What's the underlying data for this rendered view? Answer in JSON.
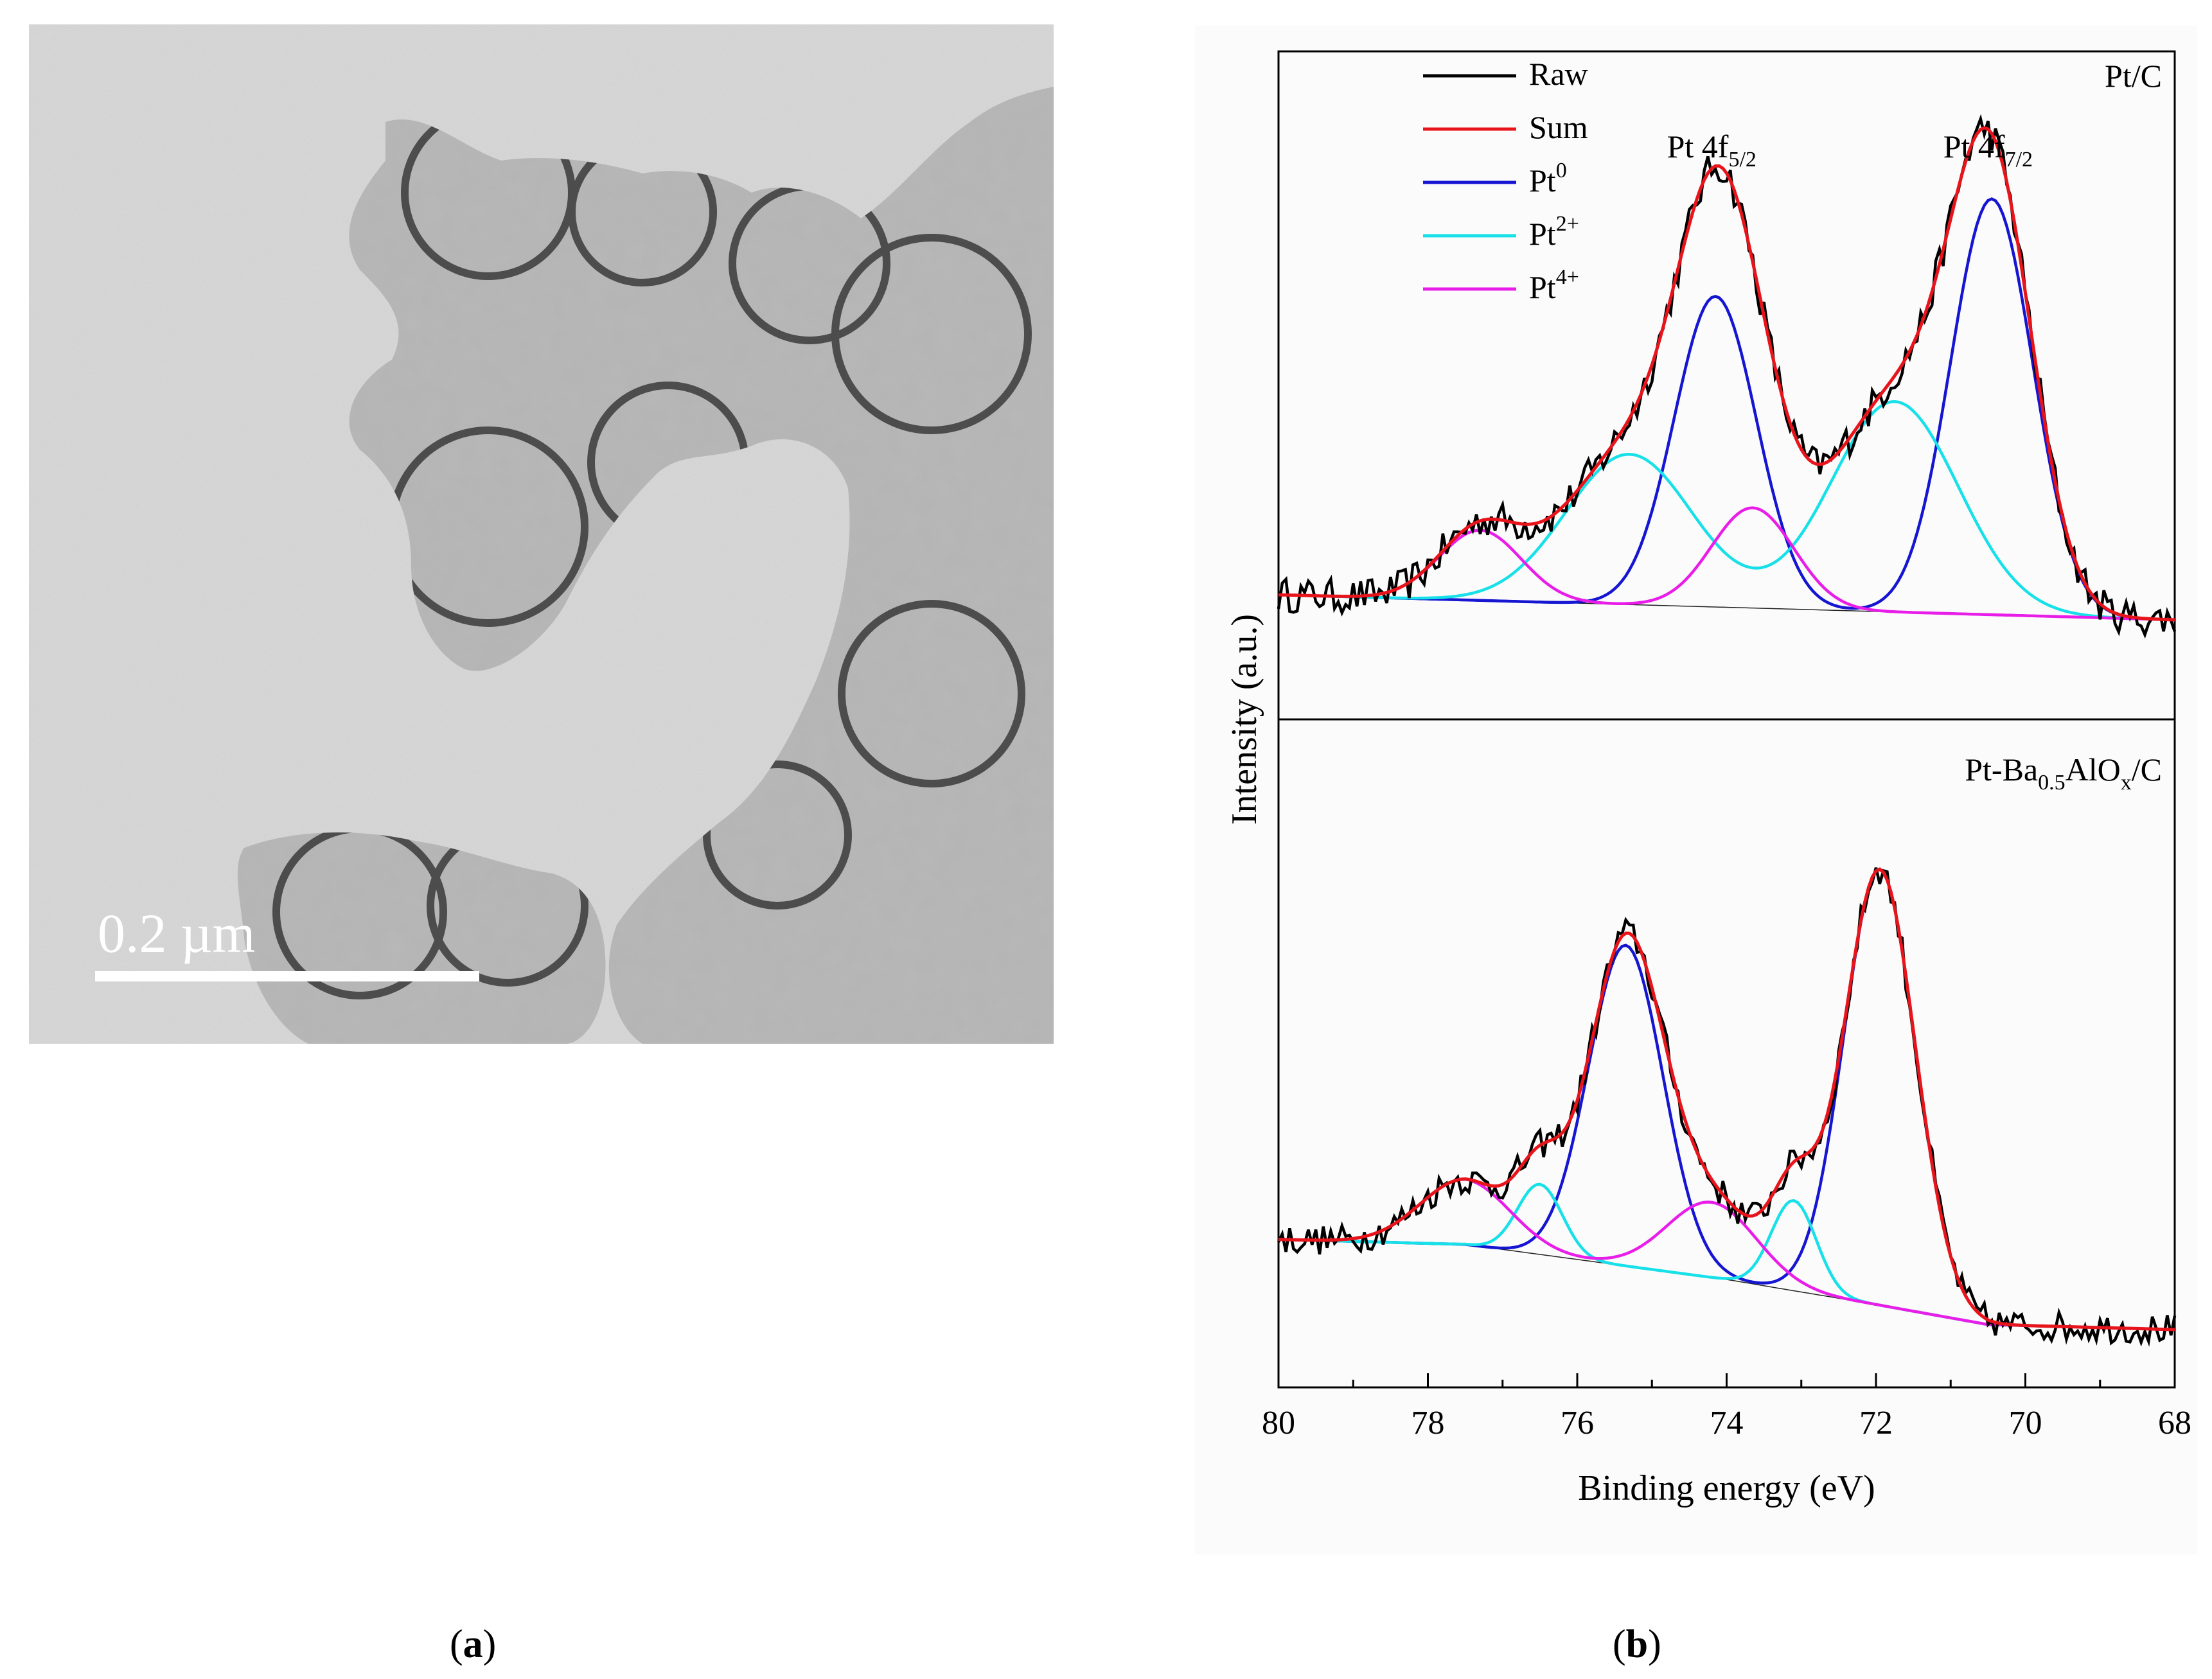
{
  "panel_a": {
    "scale_bar_label": "0.2 µm",
    "caption_open": "(",
    "caption_letter": "a",
    "caption_close": ")"
  },
  "panel_b": {
    "caption_open": "(",
    "caption_letter": "b",
    "caption_close": ")"
  },
  "chart_data": {
    "type": "line",
    "xlabel": "Binding energy (eV)",
    "ylabel": "Intensity (a.u.)",
    "xlim": [
      80,
      68
    ],
    "x_ticks": [
      "80",
      "78",
      "76",
      "74",
      "72",
      "70",
      "68"
    ],
    "legend": [
      {
        "name": "Raw",
        "color": "#000000"
      },
      {
        "name": "Sum",
        "color": "#e8141b"
      },
      {
        "name": "Pt",
        "sup": "0",
        "color": "#1515d2"
      },
      {
        "name": "Pt",
        "sup": "2+",
        "color": "#17e0e8"
      },
      {
        "name": "Pt",
        "sup": "4+",
        "color": "#e81ee8"
      }
    ],
    "legend_placement": "top-left",
    "peak_labels": [
      {
        "base": "Pt 4f",
        "sub": "5/2",
        "x": 74.2
      },
      {
        "base": "Pt 4f",
        "sub": "7/2",
        "x": 70.5
      }
    ],
    "panels": [
      {
        "label_parts": {
          "base": "Pt/C"
        },
        "background": [
          [
            80,
            0.05
          ],
          [
            68,
            0.0
          ]
        ],
        "components": [
          {
            "name": "Pt0",
            "color": "#1515d2",
            "peaks": [
              [
                74.15,
                0.62,
                0.55
              ],
              [
                70.45,
                0.83,
                0.55
              ]
            ]
          },
          {
            "name": "Pt2+",
            "color": "#17e0e8",
            "peaks": [
              [
                75.3,
                0.3,
                0.85
              ],
              [
                71.75,
                0.42,
                0.85
              ]
            ]
          },
          {
            "name": "Pt4+",
            "color": "#e81ee8",
            "peaks": [
              [
                77.3,
                0.14,
                0.55
              ],
              [
                73.65,
                0.2,
                0.55
              ]
            ]
          }
        ],
        "raw_noise": 0.035
      },
      {
        "label_parts": {
          "base": "Pt-Ba",
          "sub1": "0.5",
          "mid": "AlO",
          "sub2": "x",
          "end": "/C"
        },
        "background": [
          [
            80,
            0.18
          ],
          [
            77.5,
            0.17
          ],
          [
            74,
            0.1
          ],
          [
            72,
            0.05
          ],
          [
            70.5,
            0.01
          ],
          [
            68,
            0.0
          ]
        ],
        "components": [
          {
            "name": "Pt0",
            "color": "#1515d2",
            "peaks": [
              [
                75.35,
                0.64,
                0.5
              ],
              [
                71.95,
                0.87,
                0.48
              ]
            ]
          },
          {
            "name": "Pt2+",
            "color": "#17e0e8",
            "peaks": [
              [
                76.5,
                0.14,
                0.3
              ],
              [
                73.1,
                0.18,
                0.3
              ]
            ]
          },
          {
            "name": "Pt4+",
            "color": "#e81ee8",
            "peaks": [
              [
                77.5,
                0.13,
                0.6
              ],
              [
                74.2,
                0.15,
                0.6
              ]
            ]
          }
        ],
        "raw_noise": 0.03
      }
    ]
  }
}
